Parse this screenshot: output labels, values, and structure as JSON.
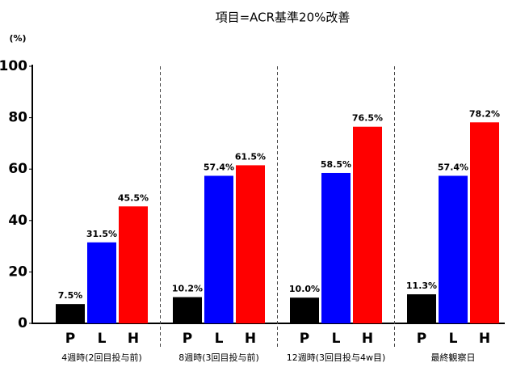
{
  "chart_data": {
    "type": "bar",
    "title": "項目=ACR基準20%改善",
    "y_unit": "(%)",
    "categories": [
      "4週時(2回目投与前)",
      "8週時(3回目投与前)",
      "12週時(3回目投与4w目)",
      "最終観察日"
    ],
    "series": [
      {
        "name": "P",
        "color": "#000000",
        "values": [
          7.5,
          10.2,
          10.0,
          11.3
        ],
        "value_labels": [
          "7.5%",
          "10.2%",
          "10.0%",
          "11.3%"
        ]
      },
      {
        "name": "L",
        "color": "#0000ff",
        "values": [
          31.5,
          57.4,
          58.5,
          57.4
        ],
        "value_labels": [
          "31.5%",
          "57.4%",
          "58.5%",
          "57.4%"
        ]
      },
      {
        "name": "H",
        "color": "#ff0000",
        "values": [
          45.5,
          61.5,
          76.5,
          78.2
        ],
        "value_labels": [
          "45.5%",
          "61.5%",
          "76.5%",
          "78.2%"
        ]
      }
    ],
    "ylim": [
      0,
      100
    ],
    "yticks": [
      0,
      20,
      40,
      60,
      80,
      100
    ]
  }
}
